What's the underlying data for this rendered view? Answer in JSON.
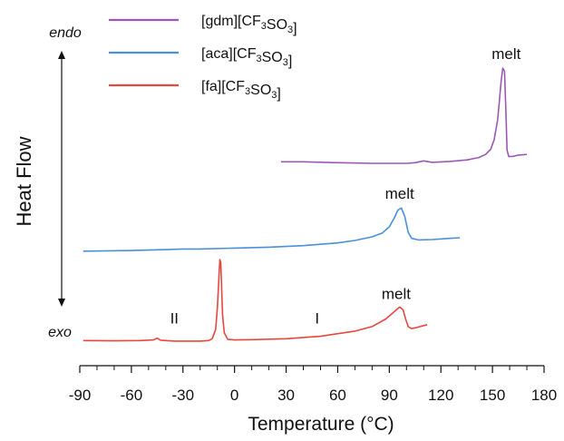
{
  "chart_data": {
    "type": "line",
    "xlabel": "Temperature (°C)",
    "ylabel": "Heat Flow",
    "xlim": [
      -90,
      180
    ],
    "xticks": [
      -90,
      -60,
      -30,
      0,
      30,
      60,
      90,
      120,
      150,
      180
    ],
    "x_tick_labels": [
      "-90",
      "-60",
      "-30",
      "0",
      "30",
      "60",
      "90",
      "120",
      "150",
      "180"
    ],
    "y_arrow": {
      "top": "endo",
      "bottom": "exo"
    },
    "ylim": [
      0,
      100
    ],
    "grid": false,
    "legend_position": "top-left",
    "series": [
      {
        "legend": "[gdm][CF3SO3]",
        "legend_parts": [
          {
            "t": "[gdm][CF"
          },
          {
            "t": "3",
            "sub": true
          },
          {
            "t": "SO"
          },
          {
            "t": "3",
            "sub": true
          },
          {
            "t": "]"
          }
        ],
        "color": "#9b59b6",
        "points": [
          [
            27,
            63.2
          ],
          [
            40,
            63.2
          ],
          [
            60,
            62.9
          ],
          [
            80,
            62.7
          ],
          [
            100,
            62.7
          ],
          [
            105,
            62.9
          ],
          [
            110,
            63.5
          ],
          [
            115,
            63.0
          ],
          [
            125,
            63.3
          ],
          [
            135,
            63.8
          ],
          [
            142,
            64.6
          ],
          [
            146,
            65.6
          ],
          [
            149,
            67.3
          ],
          [
            151,
            70.5
          ],
          [
            153,
            77.0
          ],
          [
            154,
            83.0
          ],
          [
            155,
            89.5
          ],
          [
            156,
            94.0
          ],
          [
            157,
            93.0
          ],
          [
            157.8,
            80.0
          ],
          [
            158.5,
            67.0
          ],
          [
            159.5,
            64.9
          ],
          [
            162,
            65.0
          ],
          [
            165,
            65.4
          ],
          [
            170,
            65.6
          ]
        ]
      },
      {
        "legend": "[aca][CF3SO3]",
        "legend_parts": [
          {
            "t": "[aca][CF"
          },
          {
            "t": "3",
            "sub": true
          },
          {
            "t": "SO"
          },
          {
            "t": "3",
            "sub": true
          },
          {
            "t": "]"
          }
        ],
        "color": "#4a90d9",
        "points": [
          [
            -88,
            33.8
          ],
          [
            -60,
            34.0
          ],
          [
            -40,
            34.3
          ],
          [
            -30,
            34.5
          ],
          [
            -20,
            34.5
          ],
          [
            0,
            34.8
          ],
          [
            20,
            35.1
          ],
          [
            40,
            35.6
          ],
          [
            60,
            36.5
          ],
          [
            70,
            37.3
          ],
          [
            80,
            38.5
          ],
          [
            86,
            39.8
          ],
          [
            90,
            41.8
          ],
          [
            93,
            44.8
          ],
          [
            95,
            47.3
          ],
          [
            97,
            48.0
          ],
          [
            99,
            45.2
          ],
          [
            101,
            40.0
          ],
          [
            103,
            38.0
          ],
          [
            107,
            37.5
          ],
          [
            115,
            37.6
          ],
          [
            125,
            38.0
          ],
          [
            131,
            38.2
          ]
        ]
      },
      {
        "legend": "[fa][CF3SO3]",
        "legend_parts": [
          {
            "t": "[fa][CF"
          },
          {
            "t": "3",
            "sub": true
          },
          {
            "t": "SO"
          },
          {
            "t": "3",
            "sub": true
          },
          {
            "t": "]"
          }
        ],
        "color": "#e8473f",
        "points": [
          [
            -88,
            4.4
          ],
          [
            -70,
            4.3
          ],
          [
            -55,
            4.4
          ],
          [
            -47,
            4.6
          ],
          [
            -45,
            5.2
          ],
          [
            -43,
            4.5
          ],
          [
            -35,
            4.2
          ],
          [
            -20,
            4.2
          ],
          [
            -15,
            4.4
          ],
          [
            -13,
            5.0
          ],
          [
            -11,
            8.0
          ],
          [
            -10,
            15.0
          ],
          [
            -9,
            26.0
          ],
          [
            -8.5,
            31.0
          ],
          [
            -8,
            30.0
          ],
          [
            -7.5,
            22.0
          ],
          [
            -7,
            13.0
          ],
          [
            -6,
            7.0
          ],
          [
            -4,
            4.8
          ],
          [
            0,
            4.6
          ],
          [
            10,
            4.7
          ],
          [
            30,
            5.0
          ],
          [
            50,
            5.8
          ],
          [
            70,
            7.5
          ],
          [
            80,
            9.0
          ],
          [
            88,
            11.5
          ],
          [
            93,
            13.9
          ],
          [
            96,
            15.4
          ],
          [
            98,
            14.5
          ],
          [
            99.5,
            11.5
          ],
          [
            101,
            9.0
          ],
          [
            103,
            8.3
          ],
          [
            106,
            8.7
          ],
          [
            110,
            9.3
          ],
          [
            112,
            9.6
          ]
        ]
      }
    ],
    "annotations": [
      {
        "text": "melt",
        "x": 158,
        "y": 97
      },
      {
        "text": "melt",
        "x": 96,
        "y": 51
      },
      {
        "text": "melt",
        "x": 94,
        "y": 18
      },
      {
        "text": "II",
        "x": -35,
        "y": 10
      },
      {
        "text": "I",
        "x": 48,
        "y": 10
      }
    ]
  }
}
